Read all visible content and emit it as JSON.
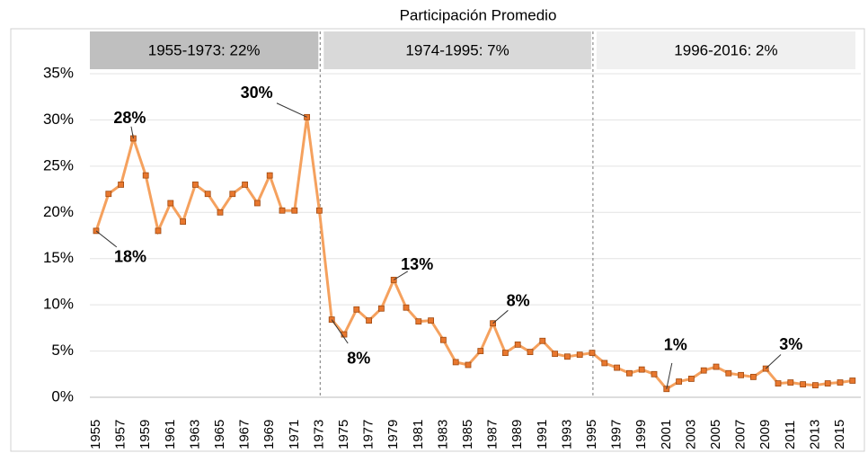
{
  "chart_data": {
    "type": "line",
    "title": "Participación Promedio",
    "categories": [
      "1955",
      null,
      "1957",
      null,
      "1959",
      null,
      "1961",
      null,
      "1963",
      null,
      "1965",
      null,
      "1967",
      null,
      "1969",
      null,
      "1971",
      null,
      "1973",
      null,
      "1975",
      null,
      "1977",
      null,
      "1979",
      null,
      "1981",
      null,
      "1983",
      null,
      "1985",
      null,
      "1987",
      null,
      "1989",
      null,
      "1991",
      null,
      "1993",
      null,
      "1995",
      null,
      "1997",
      null,
      "1999",
      null,
      "2001",
      null,
      "2003",
      null,
      "2005",
      null,
      "2007",
      null,
      "2009",
      null,
      "2011",
      null,
      "2013",
      null,
      "2015",
      null
    ],
    "values": [
      18,
      22,
      23,
      28,
      24,
      18,
      21,
      19,
      23,
      22,
      20,
      22,
      23,
      21,
      24,
      20.2,
      20.2,
      30.3,
      20.2,
      8.4,
      6.8,
      9.5,
      8.3,
      9.6,
      12.7,
      9.7,
      8.2,
      8.3,
      6.2,
      3.8,
      3.5,
      5.0,
      8.0,
      4.8,
      5.7,
      4.9,
      6.1,
      4.7,
      4.4,
      4.6,
      4.8,
      3.7,
      3.2,
      2.6,
      3.0,
      2.5,
      0.9,
      1.7,
      2.0,
      2.9,
      3.3,
      2.6,
      2.4,
      2.2,
      3.1,
      1.5,
      1.6,
      1.4,
      1.3,
      1.5,
      1.6,
      1.8
    ],
    "value_labels": [
      "18%",
      null,
      null,
      "28%",
      null,
      null,
      null,
      null,
      null,
      null,
      null,
      null,
      null,
      null,
      null,
      null,
      null,
      "30%",
      null,
      "8%",
      null,
      null,
      null,
      null,
      "13%",
      null,
      null,
      null,
      null,
      null,
      null,
      null,
      "8%",
      null,
      null,
      null,
      null,
      null,
      null,
      null,
      null,
      null,
      null,
      null,
      null,
      null,
      "1%",
      null,
      null,
      null,
      null,
      null,
      null,
      null,
      "3%",
      null,
      null,
      null,
      null,
      null,
      null,
      null
    ],
    "color": "#f5a15e",
    "marker_color": "#e8772e",
    "ylim": [
      0,
      35
    ],
    "yticks": [
      {
        "value": 0,
        "label": "0%"
      },
      {
        "value": 5,
        "label": "5%"
      },
      {
        "value": 10,
        "label": "10%"
      },
      {
        "value": 15,
        "label": "15%"
      },
      {
        "value": 20,
        "label": "20%"
      },
      {
        "value": 25,
        "label": "25%"
      },
      {
        "value": 30,
        "label": "30%"
      },
      {
        "value": 35,
        "label": "35%"
      }
    ],
    "grid": true,
    "periods": [
      {
        "label": "1955-1973: 22%",
        "color": "#bfbfbf"
      },
      {
        "label": "1974-1995: 7%",
        "color": "#d9d9d9"
      },
      {
        "label": "1996-2016: 2%",
        "color": "#f0f0f0"
      }
    ]
  }
}
